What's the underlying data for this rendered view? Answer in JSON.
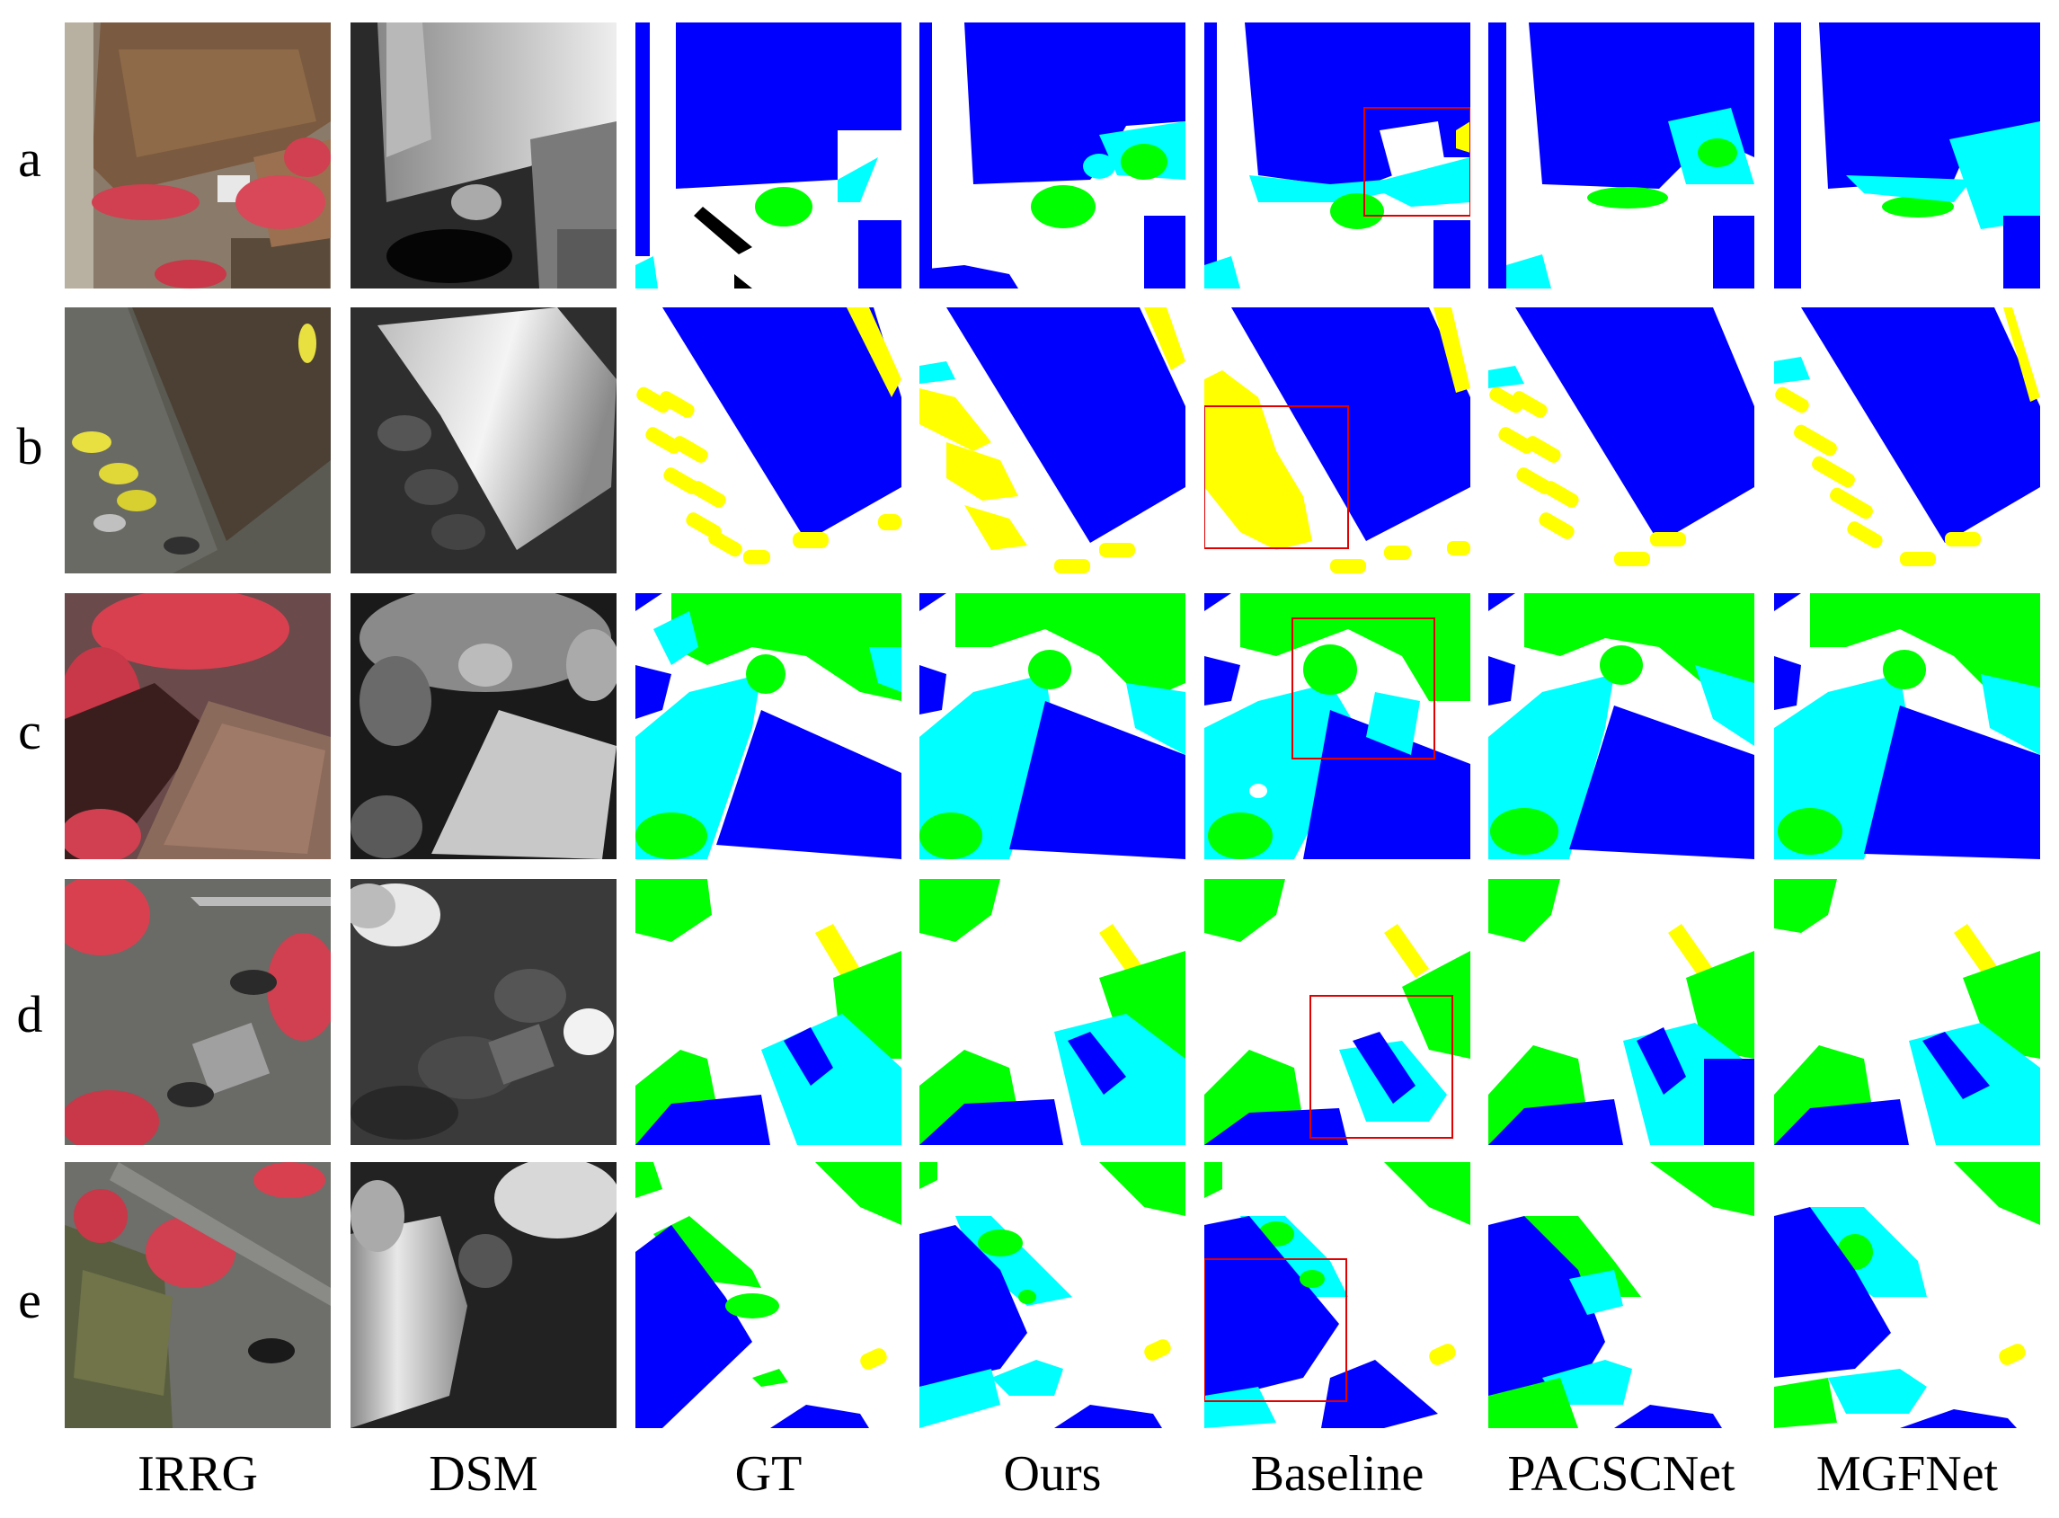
{
  "figure": {
    "row_labels": [
      "a",
      "b",
      "c",
      "d",
      "e"
    ],
    "column_labels": [
      "IRRG",
      "DSM",
      "GT",
      "Ours",
      "Baseline",
      "PACSCNet",
      "MGFNet"
    ],
    "class_colors": {
      "impervious_surface": "#ffffff",
      "building": "#0000ff",
      "low_vegetation": "#00ffff",
      "tree": "#00ff00",
      "car": "#ffff00",
      "clutter": "#000000"
    },
    "highlight_box_color": "#e00000"
  }
}
